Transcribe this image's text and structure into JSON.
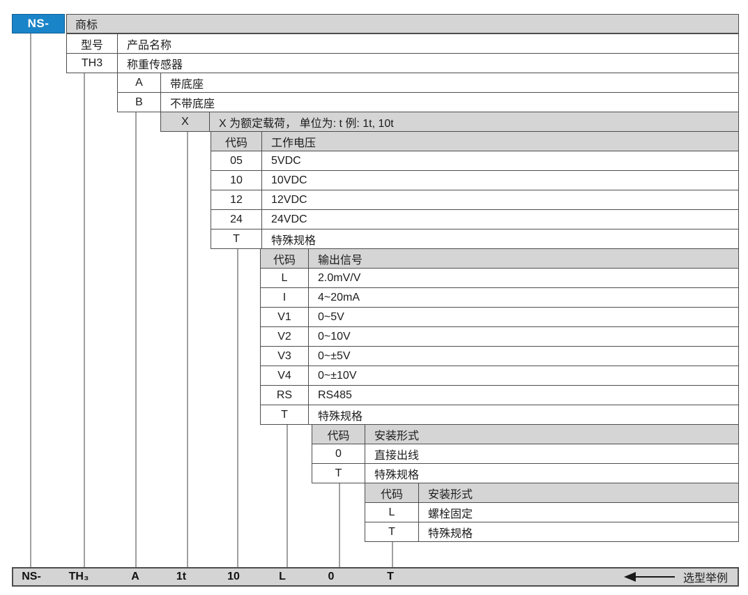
{
  "brand": {
    "code": "NS-",
    "label": "商标"
  },
  "tables": [
    {
      "id": "model",
      "rows": [
        {
          "code": "型号",
          "desc": "产品名称",
          "gray": false
        },
        {
          "code": "TH3",
          "desc": "称重传感器",
          "gray": false
        }
      ]
    },
    {
      "id": "base",
      "rows": [
        {
          "code": "A",
          "desc": "带底座",
          "gray": false
        },
        {
          "code": "B",
          "desc": "不带底座",
          "gray": false
        }
      ]
    },
    {
      "id": "rated-load",
      "rows": [
        {
          "code": "X",
          "desc": "X 为额定载荷， 单位为: t 例: 1t, 10t",
          "gray": true
        }
      ]
    },
    {
      "id": "working-voltage",
      "rows": [
        {
          "code": "代码",
          "desc": "工作电压",
          "gray": true
        },
        {
          "code": "05",
          "desc": "5VDC",
          "gray": false
        },
        {
          "code": "10",
          "desc": "10VDC",
          "gray": false
        },
        {
          "code": "12",
          "desc": "12VDC",
          "gray": false
        },
        {
          "code": "24",
          "desc": "24VDC",
          "gray": false
        },
        {
          "code": "T",
          "desc": "特殊规格",
          "gray": false
        }
      ]
    },
    {
      "id": "output-signal",
      "rows": [
        {
          "code": "代码",
          "desc": "输出信号",
          "gray": true
        },
        {
          "code": "L",
          "desc": "2.0mV/V",
          "gray": false
        },
        {
          "code": "I",
          "desc": "4~20mA",
          "gray": false
        },
        {
          "code": "V1",
          "desc": "0~5V",
          "gray": false
        },
        {
          "code": "V2",
          "desc": "0~10V",
          "gray": false
        },
        {
          "code": "V3",
          "desc": "0~±5V",
          "gray": false
        },
        {
          "code": "V4",
          "desc": "0~±10V",
          "gray": false
        },
        {
          "code": "RS",
          "desc": "RS485",
          "gray": false
        },
        {
          "code": "T",
          "desc": "特殊规格",
          "gray": false
        }
      ]
    },
    {
      "id": "mounting-1",
      "rows": [
        {
          "code": "代码",
          "desc": "安装形式",
          "gray": true
        },
        {
          "code": "0",
          "desc": "直接出线",
          "gray": false
        },
        {
          "code": "T",
          "desc": "特殊规格",
          "gray": false
        }
      ]
    },
    {
      "id": "mounting-2",
      "rows": [
        {
          "code": "代码",
          "desc": "安装形式",
          "gray": true
        },
        {
          "code": "L",
          "desc": "螺栓固定",
          "gray": false
        },
        {
          "code": "T",
          "desc": "特殊规格",
          "gray": false
        }
      ]
    }
  ],
  "example": {
    "values": [
      "NS-",
      "TH₃",
      "A",
      "1t",
      "10",
      "L",
      "0",
      "T"
    ],
    "arrow_label": "选型举例"
  },
  "colors": {
    "brand_blue": "#1a84c8",
    "header_gray": "#d5d5d5",
    "border_dark": "#4d4d4d",
    "line_gray": "#a0a0a0",
    "bar_gray": "#d4d4d4"
  }
}
